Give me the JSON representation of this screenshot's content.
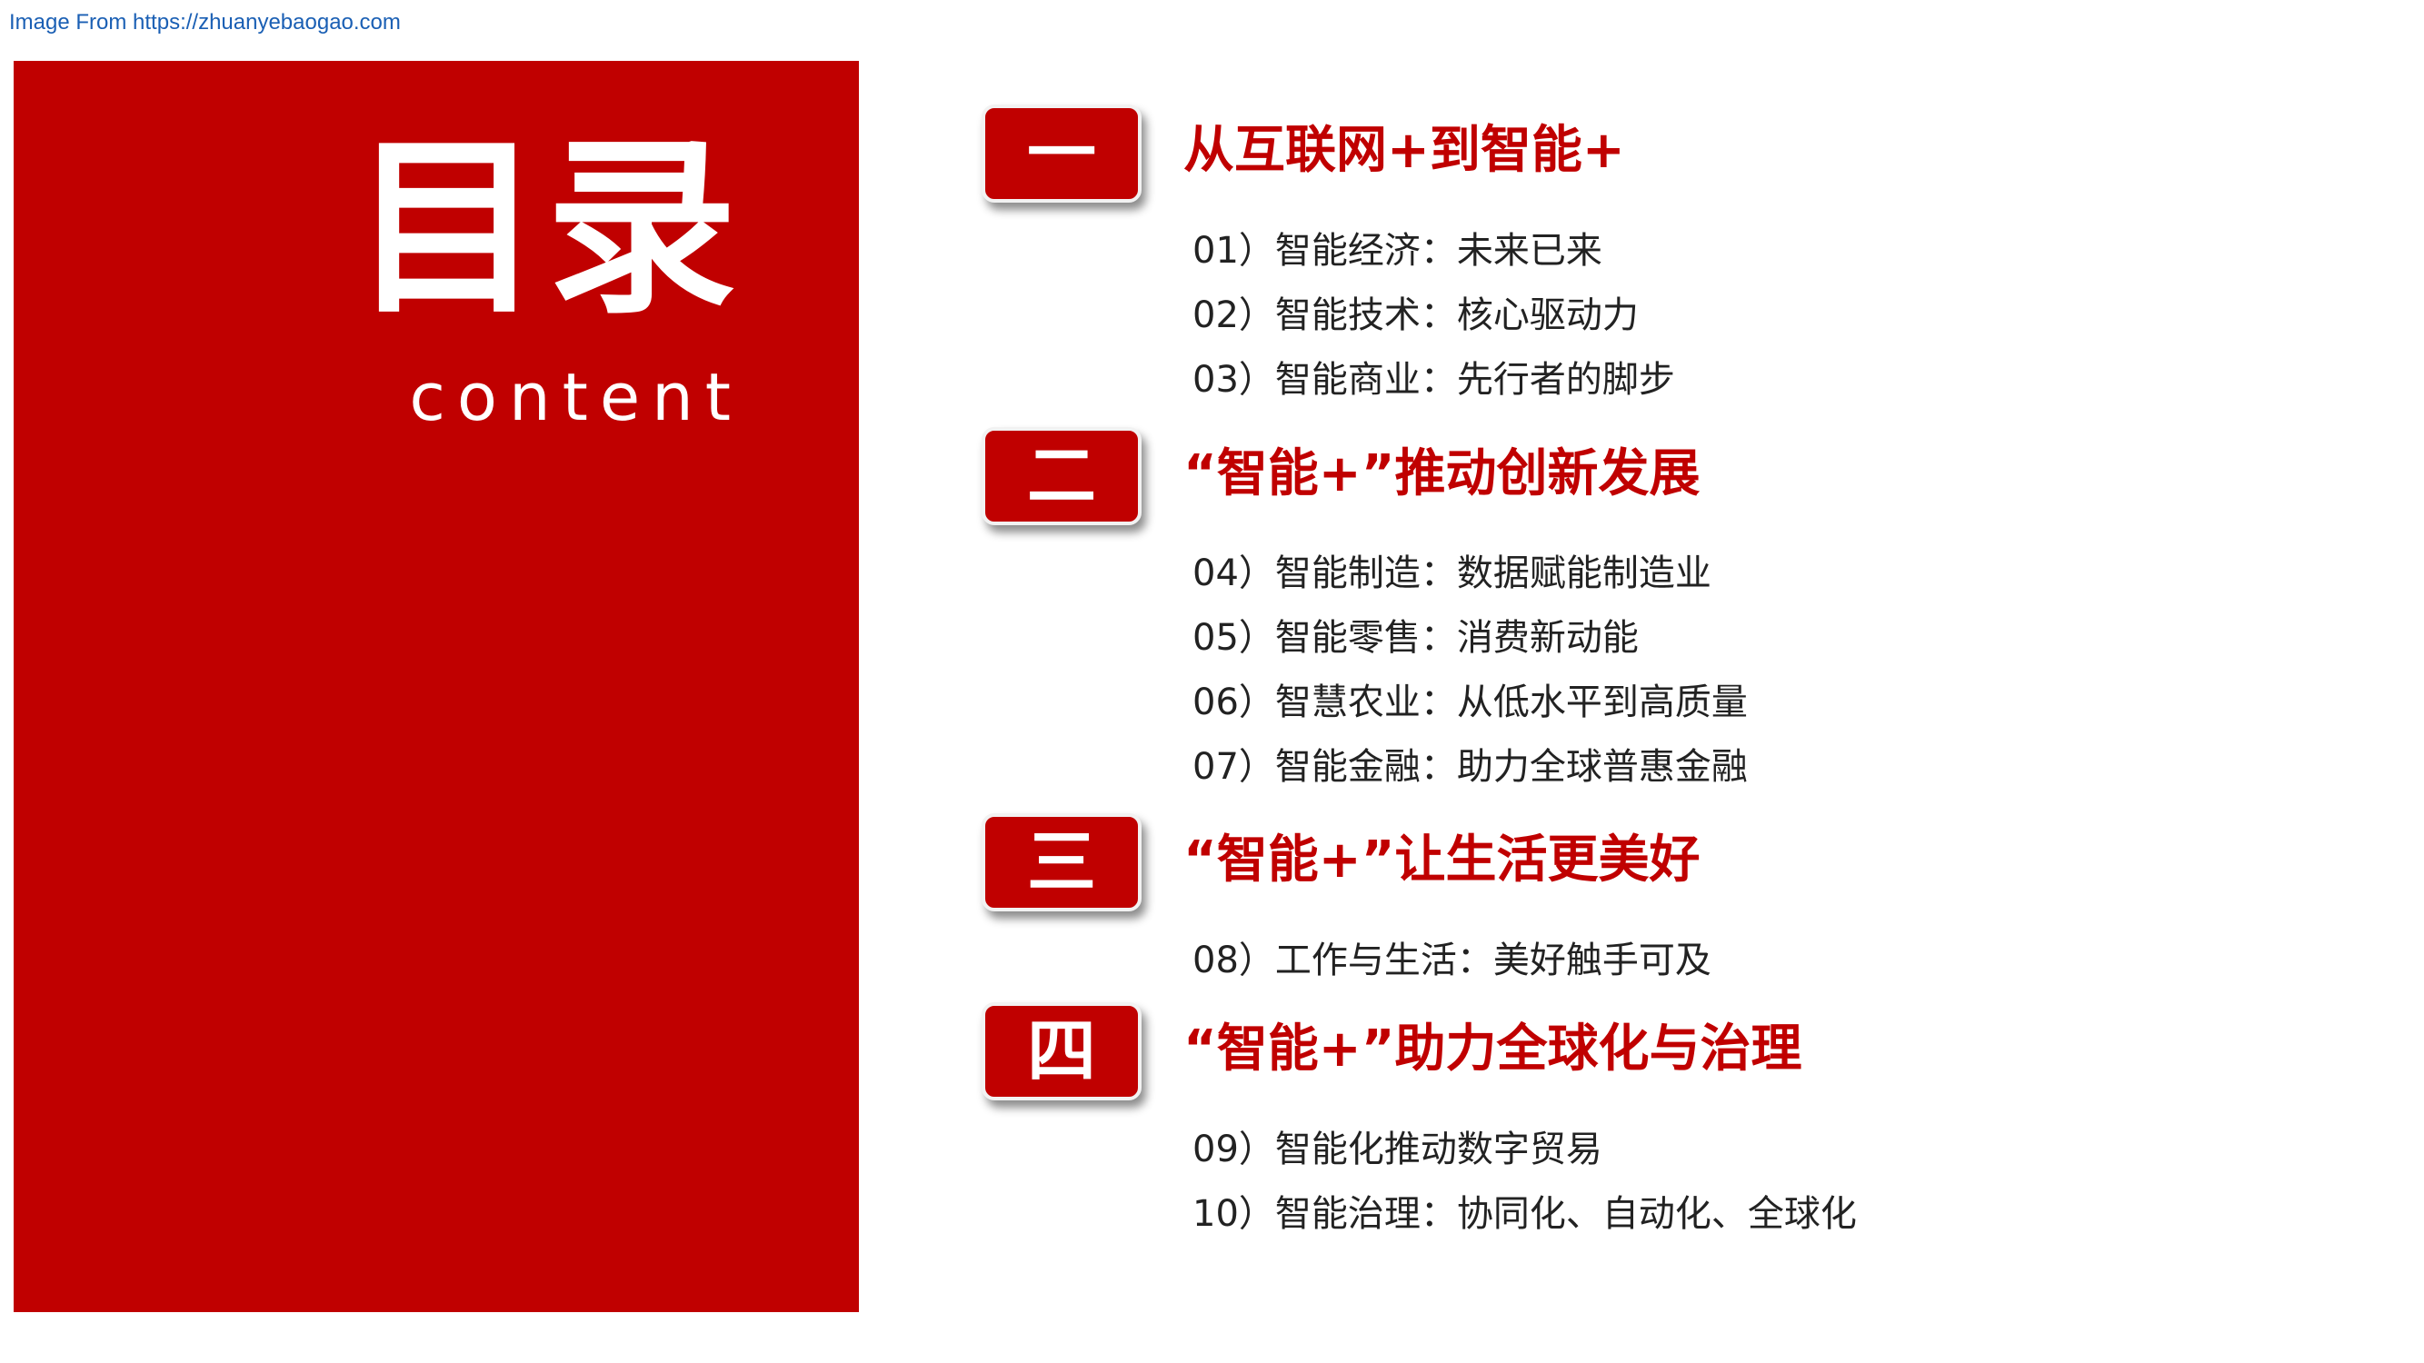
{
  "source_text": "Image From https://zhuanyebaogao.com",
  "title": "目录",
  "subtitle": "content",
  "sections": [
    {
      "badge": "一",
      "heading": "从互联网+到智能+",
      "items": [
        "01）智能经济：未来已来",
        "02）智能技术：核心驱动力",
        "03）智能商业：先行者的脚步"
      ]
    },
    {
      "badge": "二",
      "heading": "“智能+”推动创新发展",
      "items": [
        "04）智能制造：数据赋能制造业",
        "05）智能零售：消费新动能",
        "06）智慧农业：从低水平到高质量",
        "07）智能金融：助力全球普惠金融"
      ]
    },
    {
      "badge": "三",
      "heading": "“智能+”让生活更美好",
      "items": [
        "08）工作与生活：美好触手可及"
      ]
    },
    {
      "badge": "四",
      "heading": "“智能+”助力全球化与治理",
      "items": [
        "09）智能化推动数字贸易",
        "10）智能治理：协同化、自动化、全球化"
      ]
    }
  ],
  "colors": {
    "accent": "#c00000",
    "item_text": "#222222",
    "link": "#1a5fb4"
  }
}
